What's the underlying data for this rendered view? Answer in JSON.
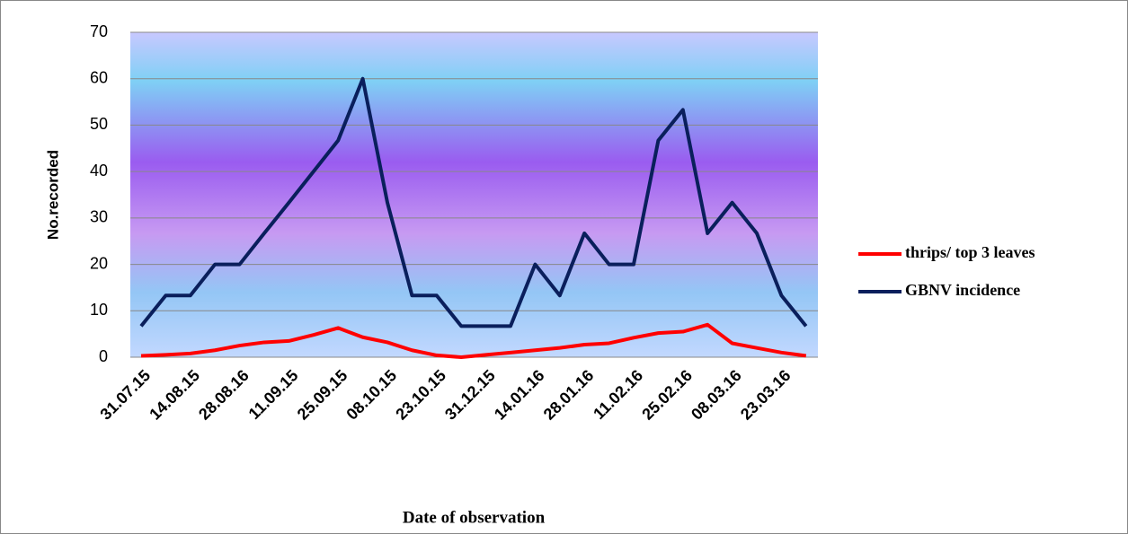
{
  "chart_data": {
    "type": "line",
    "x_label": "Date of observation",
    "y_label": "No.recorded",
    "categories": [
      "31.07.15",
      null,
      "14.08.15",
      null,
      "28.08.16",
      null,
      "11.09.15",
      null,
      "25.09.15",
      null,
      "08.10.15",
      null,
      "23.10.15",
      null,
      "31.12.15",
      null,
      "14.01.16",
      null,
      "28.01.16",
      null,
      "11.02.16",
      null,
      "25.02.16",
      null,
      "08.03.16",
      null,
      "23.03.16",
      null
    ],
    "series": [
      {
        "name": "thrips/ top 3 leaves",
        "color": "#ff0000",
        "values": [
          0.3,
          0.5,
          0.8,
          1.5,
          2.5,
          3.2,
          3.5,
          4.8,
          6.3,
          4.3,
          3.2,
          1.5,
          0.4,
          0,
          0.5,
          1,
          1.5,
          2,
          2.7,
          3,
          4.2,
          5.2,
          5.5,
          7,
          3,
          2,
          1,
          0.3
        ]
      },
      {
        "name": "GBNV incidence",
        "color": "#0a1f5c",
        "values": [
          6.7,
          13.3,
          13.3,
          20,
          20,
          26.7,
          33.3,
          40,
          46.7,
          60,
          33.3,
          13.3,
          13.3,
          6.7,
          6.7,
          6.7,
          20,
          13.3,
          26.7,
          20,
          20,
          46.7,
          53.3,
          26.7,
          33.3,
          26.7,
          13.3,
          6.7
        ]
      }
    ],
    "ylim": [
      0,
      70
    ],
    "yticks": [
      0,
      10,
      20,
      30,
      40,
      50,
      60,
      70
    ],
    "grid": true,
    "legend": "right"
  }
}
